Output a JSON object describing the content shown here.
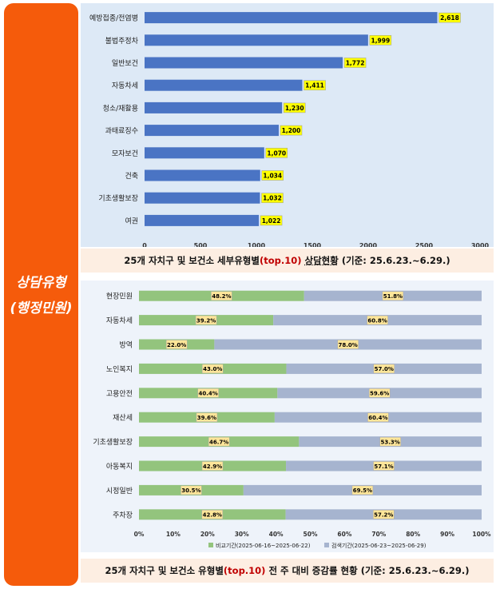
{
  "sidebar": {
    "line1": "상담유형",
    "line2": "(행정민원)",
    "color": "#f55b0b"
  },
  "chart_data": [
    {
      "type": "bar",
      "orientation": "horizontal",
      "categories": [
        "예방접종/전염병",
        "불법주정차",
        "일반보건",
        "자동차세",
        "청소/재활용",
        "과태료징수",
        "모자보건",
        "건축",
        "기초생활보장",
        "여권"
      ],
      "values": [
        2618,
        1999,
        1772,
        1411,
        1230,
        1200,
        1070,
        1034,
        1032,
        1022
      ],
      "data_labels": [
        "2,618",
        "1,999",
        "1,772",
        "1,411",
        "1,230",
        "1,200",
        "1,070",
        "1,034",
        "1,032",
        "1,022"
      ],
      "xlim": [
        0,
        3000
      ],
      "x_ticks": [
        "0",
        "500",
        "1000",
        "1500",
        "2000",
        "2500",
        "3000"
      ],
      "bar_color": "#4a74c4",
      "label_bg": "#ffff00",
      "caption": {
        "pre": "25개 자치구 및 보건소 세부유형별",
        "hl": "(top.10)",
        "mid": "상담현황",
        "post": "(기준: 25.6.23.~6.29.)"
      }
    },
    {
      "type": "bar",
      "orientation": "horizontal",
      "stacked": true,
      "percent": true,
      "categories": [
        "현장민원",
        "자동차세",
        "방역",
        "노인복지",
        "고용안전",
        "재산세",
        "기초생활보장",
        "아동복지",
        "시정일반",
        "주차장"
      ],
      "series": [
        {
          "name": "비교기간(2025-06-16~2025-06-22)",
          "values": [
            48.2,
            39.2,
            22.0,
            43.0,
            40.4,
            39.6,
            46.7,
            42.9,
            30.5,
            42.8
          ],
          "labels": [
            "48.2%",
            "39.2%",
            "22.0%",
            "43.0%",
            "40.4%",
            "39.6%",
            "46.7%",
            "42.9%",
            "30.5%",
            "42.8%"
          ],
          "color": "#93c47d"
        },
        {
          "name": "검색기간(2025-06-23~2025-06-29)",
          "values": [
            51.8,
            60.8,
            78.0,
            57.0,
            59.6,
            60.4,
            53.3,
            57.1,
            69.5,
            57.2
          ],
          "labels": [
            "51.8%",
            "60.8%",
            "78.0%",
            "57.0%",
            "59.6%",
            "60.4%",
            "53.3%",
            "57.1%",
            "69.5%",
            "57.2%"
          ],
          "color": "#a6b4cf"
        }
      ],
      "xlim": [
        0,
        100
      ],
      "x_ticks": [
        "0%",
        "10%",
        "20%",
        "30%",
        "40%",
        "50%",
        "60%",
        "70%",
        "80%",
        "90%",
        "100%"
      ],
      "label_bg": "#ffe699",
      "legend_position": "bottom",
      "caption": {
        "pre": "25개 자치구 및 보건소 유형별",
        "hl": "(top.10)",
        "mid": "전 주 대비 증감률 현황",
        "post": "(기준: 25.6.23.~6.29.)"
      }
    }
  ]
}
